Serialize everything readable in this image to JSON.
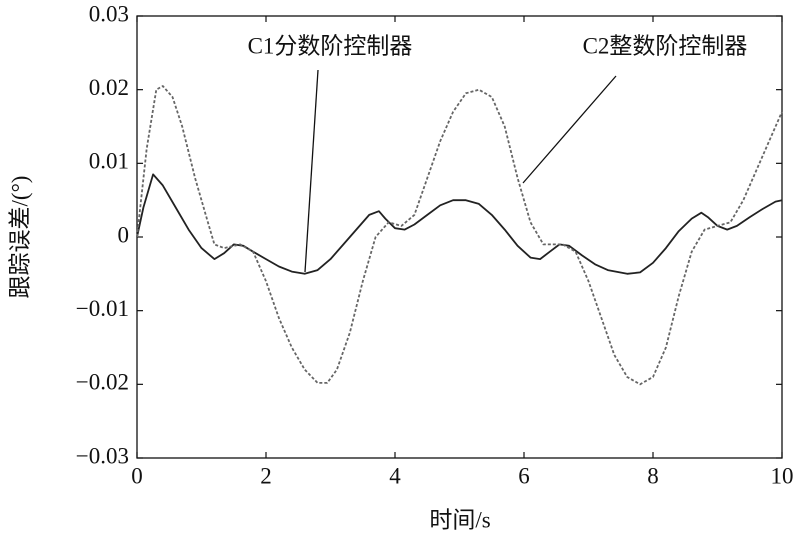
{
  "chart_data": {
    "type": "line",
    "xlabel": "时间/s",
    "ylabel": "跟踪误差/(°)",
    "xlim": [
      0,
      10
    ],
    "ylim": [
      -0.03,
      0.03
    ],
    "xticks": [
      0,
      2,
      4,
      6,
      8,
      10
    ],
    "yticks": [
      {
        "value": -0.03,
        "label": "−0.03"
      },
      {
        "value": -0.02,
        "label": "−0.02"
      },
      {
        "value": -0.01,
        "label": "−0.01"
      },
      0,
      0.01,
      0.02,
      0.03
    ],
    "annotations": [
      "C1分数阶控制器",
      "C2整数阶控制器"
    ],
    "series": [
      {
        "color": "#222222",
        "dash": false,
        "x": [
          0,
          0.1,
          0.25,
          0.4,
          0.6,
          0.8,
          1.0,
          1.2,
          1.35,
          1.5,
          1.65,
          1.8,
          2.0,
          2.2,
          2.4,
          2.6,
          2.8,
          3.0,
          3.2,
          3.4,
          3.6,
          3.75,
          3.85,
          4.0,
          4.15,
          4.3,
          4.5,
          4.7,
          4.9,
          5.1,
          5.3,
          5.5,
          5.7,
          5.9,
          6.1,
          6.25,
          6.4,
          6.55,
          6.7,
          6.9,
          7.1,
          7.3,
          7.6,
          7.8,
          8.0,
          8.2,
          8.4,
          8.6,
          8.75,
          8.85,
          9.0,
          9.15,
          9.3,
          9.5,
          9.7,
          9.9,
          10
        ],
        "values": [
          0,
          0.004,
          0.0085,
          0.007,
          0.004,
          0.001,
          -0.0015,
          -0.003,
          -0.0022,
          -0.001,
          -0.0012,
          -0.002,
          -0.003,
          -0.004,
          -0.0047,
          -0.005,
          -0.0045,
          -0.003,
          -0.001,
          0.001,
          0.003,
          0.0035,
          0.0025,
          0.0012,
          0.001,
          0.0017,
          0.003,
          0.0043,
          0.005,
          0.005,
          0.0045,
          0.003,
          0.001,
          -0.0012,
          -0.0028,
          -0.003,
          -0.002,
          -0.001,
          -0.0012,
          -0.0025,
          -0.0037,
          -0.0045,
          -0.005,
          -0.0048,
          -0.0035,
          -0.0015,
          0.0008,
          0.0025,
          0.0033,
          0.0027,
          0.0015,
          0.001,
          0.0015,
          0.0027,
          0.0038,
          0.0048,
          0.005
        ]
      },
      {
        "color": "#666666",
        "dash": true,
        "x": [
          0,
          0.15,
          0.3,
          0.4,
          0.55,
          0.7,
          0.9,
          1.1,
          1.2,
          1.35,
          1.6,
          1.8,
          2.0,
          2.2,
          2.4,
          2.6,
          2.8,
          2.95,
          3.1,
          3.3,
          3.5,
          3.7,
          3.9,
          4.1,
          4.3,
          4.5,
          4.7,
          4.9,
          5.1,
          5.3,
          5.5,
          5.7,
          5.9,
          6.1,
          6.3,
          6.6,
          6.8,
          7.0,
          7.2,
          7.4,
          7.6,
          7.8,
          8.0,
          8.2,
          8.4,
          8.6,
          8.8,
          9.0,
          9.2,
          9.4,
          9.6,
          9.8,
          10
        ],
        "values": [
          0,
          0.012,
          0.02,
          0.0205,
          0.019,
          0.015,
          0.008,
          0.002,
          -0.001,
          -0.0015,
          -0.001,
          -0.002,
          -0.006,
          -0.011,
          -0.015,
          -0.018,
          -0.0198,
          -0.0198,
          -0.018,
          -0.013,
          -0.006,
          0,
          0.002,
          0.0015,
          0.003,
          0.008,
          0.013,
          0.017,
          0.0195,
          0.02,
          0.019,
          0.015,
          0.008,
          0.002,
          -0.001,
          -0.001,
          -0.002,
          -0.006,
          -0.011,
          -0.016,
          -0.019,
          -0.02,
          -0.019,
          -0.015,
          -0.008,
          -0.002,
          0.001,
          0.0015,
          0.002,
          0.005,
          0.009,
          0.013,
          0.017
        ]
      }
    ]
  }
}
